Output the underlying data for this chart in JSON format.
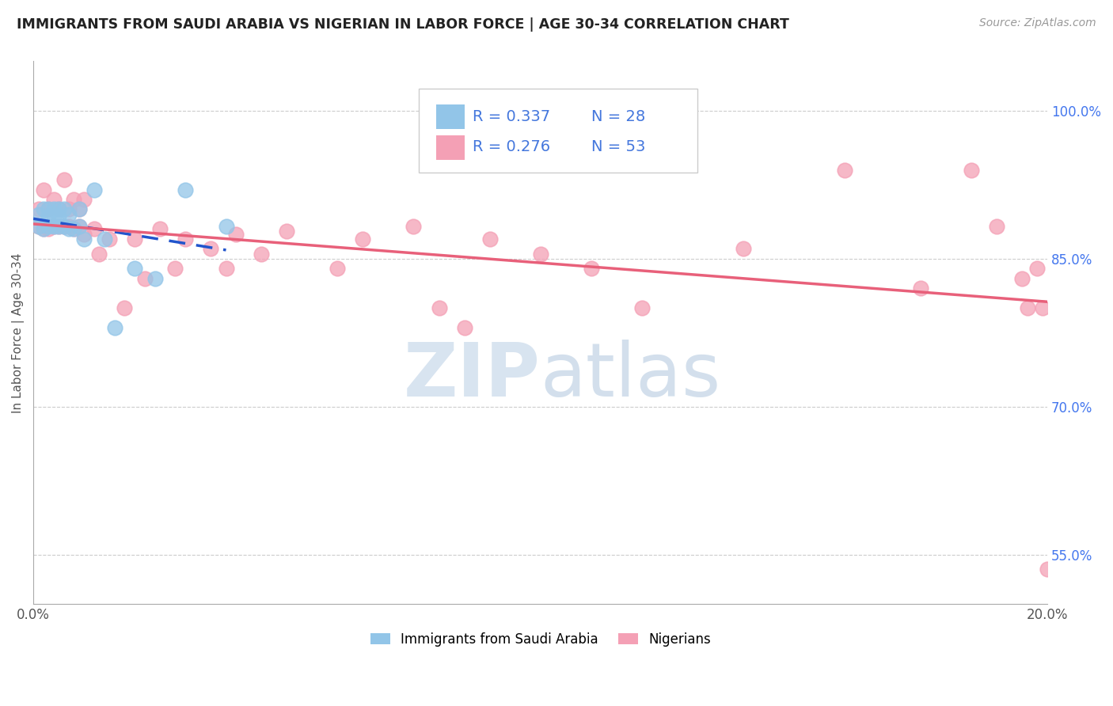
{
  "title": "IMMIGRANTS FROM SAUDI ARABIA VS NIGERIAN IN LABOR FORCE | AGE 30-34 CORRELATION CHART",
  "source": "Source: ZipAtlas.com",
  "ylabel": "In Labor Force | Age 30-34",
  "xlim": [
    0.0,
    0.2
  ],
  "ylim": [
    0.5,
    1.05
  ],
  "x_ticks": [
    0.0,
    0.05,
    0.1,
    0.15,
    0.2
  ],
  "x_tick_labels": [
    "0.0%",
    "",
    "",
    "",
    "20.0%"
  ],
  "y_ticks": [
    0.55,
    0.7,
    0.85,
    1.0
  ],
  "y_tick_labels": [
    "55.0%",
    "70.0%",
    "85.0%",
    "100.0%"
  ],
  "legend_entries": [
    "Immigrants from Saudi Arabia",
    "Nigerians"
  ],
  "saudi_color": "#92C5E8",
  "nigerian_color": "#F4A0B5",
  "saudi_line_color": "#2255CC",
  "nigerian_line_color": "#E8607A",
  "saudi_R": 0.337,
  "saudi_N": 28,
  "nigerian_R": 0.276,
  "nigerian_N": 53,
  "saudi_x": [
    0.001,
    0.001,
    0.002,
    0.002,
    0.003,
    0.003,
    0.003,
    0.004,
    0.004,
    0.004,
    0.005,
    0.005,
    0.005,
    0.006,
    0.006,
    0.007,
    0.007,
    0.008,
    0.009,
    0.009,
    0.01,
    0.012,
    0.014,
    0.016,
    0.02,
    0.024,
    0.03,
    0.038
  ],
  "saudi_y": [
    0.883,
    0.895,
    0.88,
    0.9,
    0.883,
    0.893,
    0.9,
    0.883,
    0.892,
    0.9,
    0.883,
    0.893,
    0.9,
    0.883,
    0.9,
    0.88,
    0.895,
    0.88,
    0.883,
    0.9,
    0.87,
    0.92,
    0.87,
    0.78,
    0.84,
    0.83,
    0.92,
    0.883
  ],
  "nigerian_x": [
    0.001,
    0.001,
    0.002,
    0.002,
    0.003,
    0.003,
    0.004,
    0.004,
    0.005,
    0.005,
    0.006,
    0.006,
    0.007,
    0.007,
    0.008,
    0.008,
    0.009,
    0.009,
    0.01,
    0.01,
    0.012,
    0.013,
    0.015,
    0.018,
    0.02,
    0.022,
    0.025,
    0.028,
    0.03,
    0.035,
    0.038,
    0.04,
    0.045,
    0.05,
    0.06,
    0.065,
    0.075,
    0.08,
    0.085,
    0.09,
    0.1,
    0.11,
    0.12,
    0.14,
    0.16,
    0.175,
    0.185,
    0.19,
    0.195,
    0.196,
    0.198,
    0.199,
    0.2
  ],
  "nigerian_y": [
    0.883,
    0.9,
    0.88,
    0.92,
    0.88,
    0.9,
    0.883,
    0.91,
    0.883,
    0.9,
    0.883,
    0.93,
    0.883,
    0.9,
    0.88,
    0.91,
    0.883,
    0.9,
    0.875,
    0.91,
    0.88,
    0.855,
    0.87,
    0.8,
    0.87,
    0.83,
    0.88,
    0.84,
    0.87,
    0.86,
    0.84,
    0.875,
    0.855,
    0.878,
    0.84,
    0.87,
    0.883,
    0.8,
    0.78,
    0.87,
    0.855,
    0.84,
    0.8,
    0.86,
    0.94,
    0.82,
    0.94,
    0.883,
    0.83,
    0.8,
    0.84,
    0.8,
    0.535
  ],
  "background_color": "#ffffff",
  "watermark_color": "#d8e4f0"
}
